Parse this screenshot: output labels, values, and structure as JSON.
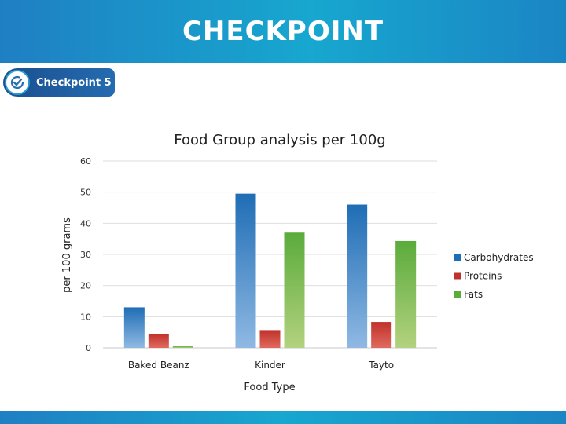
{
  "header": {
    "title": "CHECKPOINT"
  },
  "badge": {
    "label": "Checkpoint 5",
    "icon": "check-circle-icon"
  },
  "chart_data": {
    "type": "bar",
    "title": "Food Group analysis per 100g",
    "xlabel": "Food Type",
    "ylabel": "per 100 grams",
    "categories": [
      "Baked Beanz",
      "Kinder",
      "Tayto"
    ],
    "series": [
      {
        "name": "Carbohydrates",
        "values": [
          13,
          49.5,
          46
        ],
        "color": "#1f6db5"
      },
      {
        "name": "Proteins",
        "values": [
          4.5,
          5.7,
          8.3
        ],
        "color": "#c0312b"
      },
      {
        "name": "Fats",
        "values": [
          0.5,
          37,
          34.3
        ],
        "color": "#5aab3c"
      }
    ],
    "ylim": [
      0,
      60
    ],
    "yticks": [
      0,
      10,
      20,
      30,
      40,
      50,
      60
    ],
    "grid": true,
    "legend": "right"
  }
}
